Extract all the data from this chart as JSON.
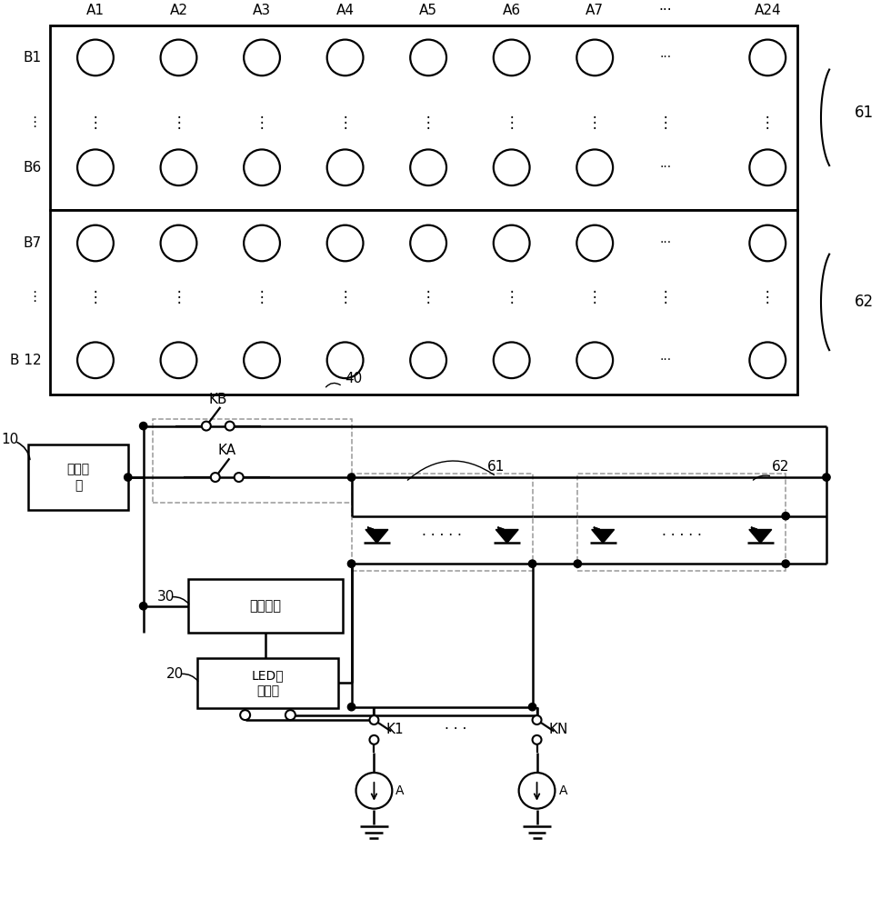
{
  "bg_color": "#ffffff",
  "line_color": "#000000",
  "dashed_color": "#999999",
  "fig_width": 9.8,
  "fig_height": 10.0,
  "col_labels": [
    "A1",
    "A2",
    "A3",
    "A4",
    "A5",
    "A6",
    "A7",
    "···",
    "A24"
  ],
  "row61_labels": [
    "B1",
    "⋮",
    "B6"
  ],
  "row62_labels": [
    "B7",
    "⋮",
    "B 12"
  ],
  "label61": "61",
  "label62": "62",
  "box10_text": "驱动电\n源",
  "box20_text": "LED驱\n动模块",
  "box30_text": "控制模块",
  "label10": "10",
  "label20": "20",
  "label30": "30",
  "label40": "40",
  "labelKA": "KA",
  "labelKB": "KB",
  "labelK1": "K1",
  "labelKN": "KN",
  "labelA": "A",
  "label61c": "61",
  "label62c": "62"
}
